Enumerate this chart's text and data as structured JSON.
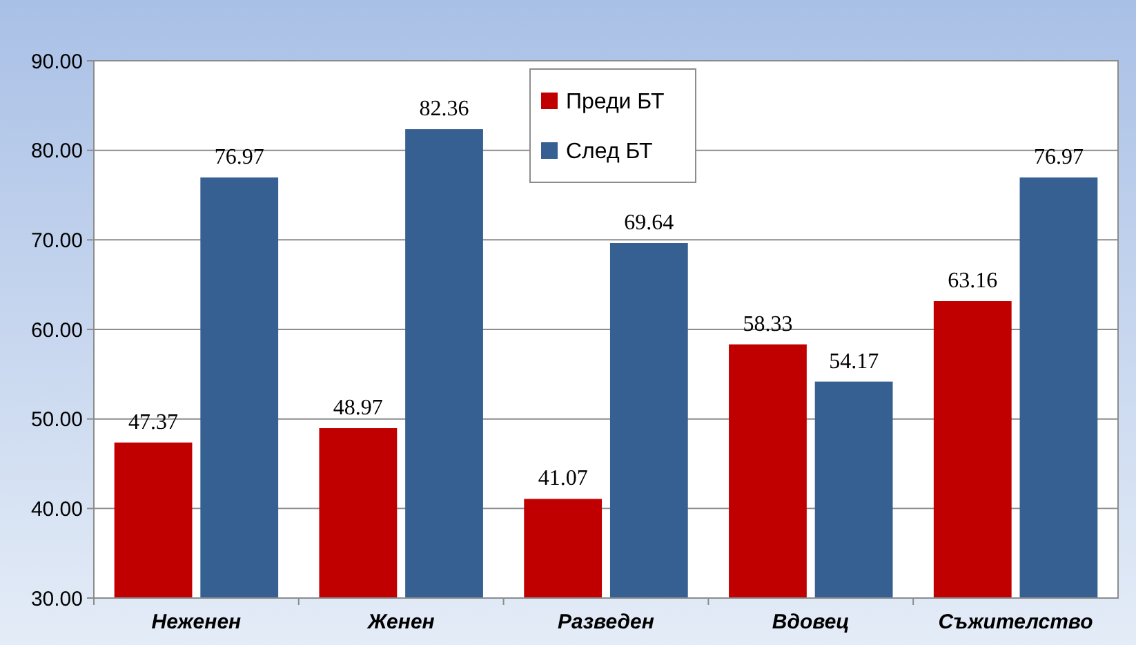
{
  "chart_data": {
    "type": "bar",
    "categories": [
      "Неженен",
      "Женен",
      "Разведен",
      "Вдовец",
      "Съжителство"
    ],
    "series": [
      {
        "name": "Преди БТ",
        "color": "#c00000",
        "values": [
          47.37,
          48.97,
          41.07,
          58.33,
          63.16
        ]
      },
      {
        "name": "След БТ",
        "color": "#376092",
        "values": [
          76.97,
          82.36,
          69.64,
          54.17,
          76.97
        ]
      }
    ],
    "ylim": [
      30,
      90
    ],
    "yticks": [
      {
        "value": 30,
        "label": "30.00"
      },
      {
        "value": 40,
        "label": "40.00"
      },
      {
        "value": 50,
        "label": "50.00"
      },
      {
        "value": 60,
        "label": "60.00"
      },
      {
        "value": 70,
        "label": "70.00"
      },
      {
        "value": 80,
        "label": "80.00"
      },
      {
        "value": 90,
        "label": "90.00"
      }
    ],
    "grid": "y",
    "legend": "top",
    "data_labels": true
  }
}
